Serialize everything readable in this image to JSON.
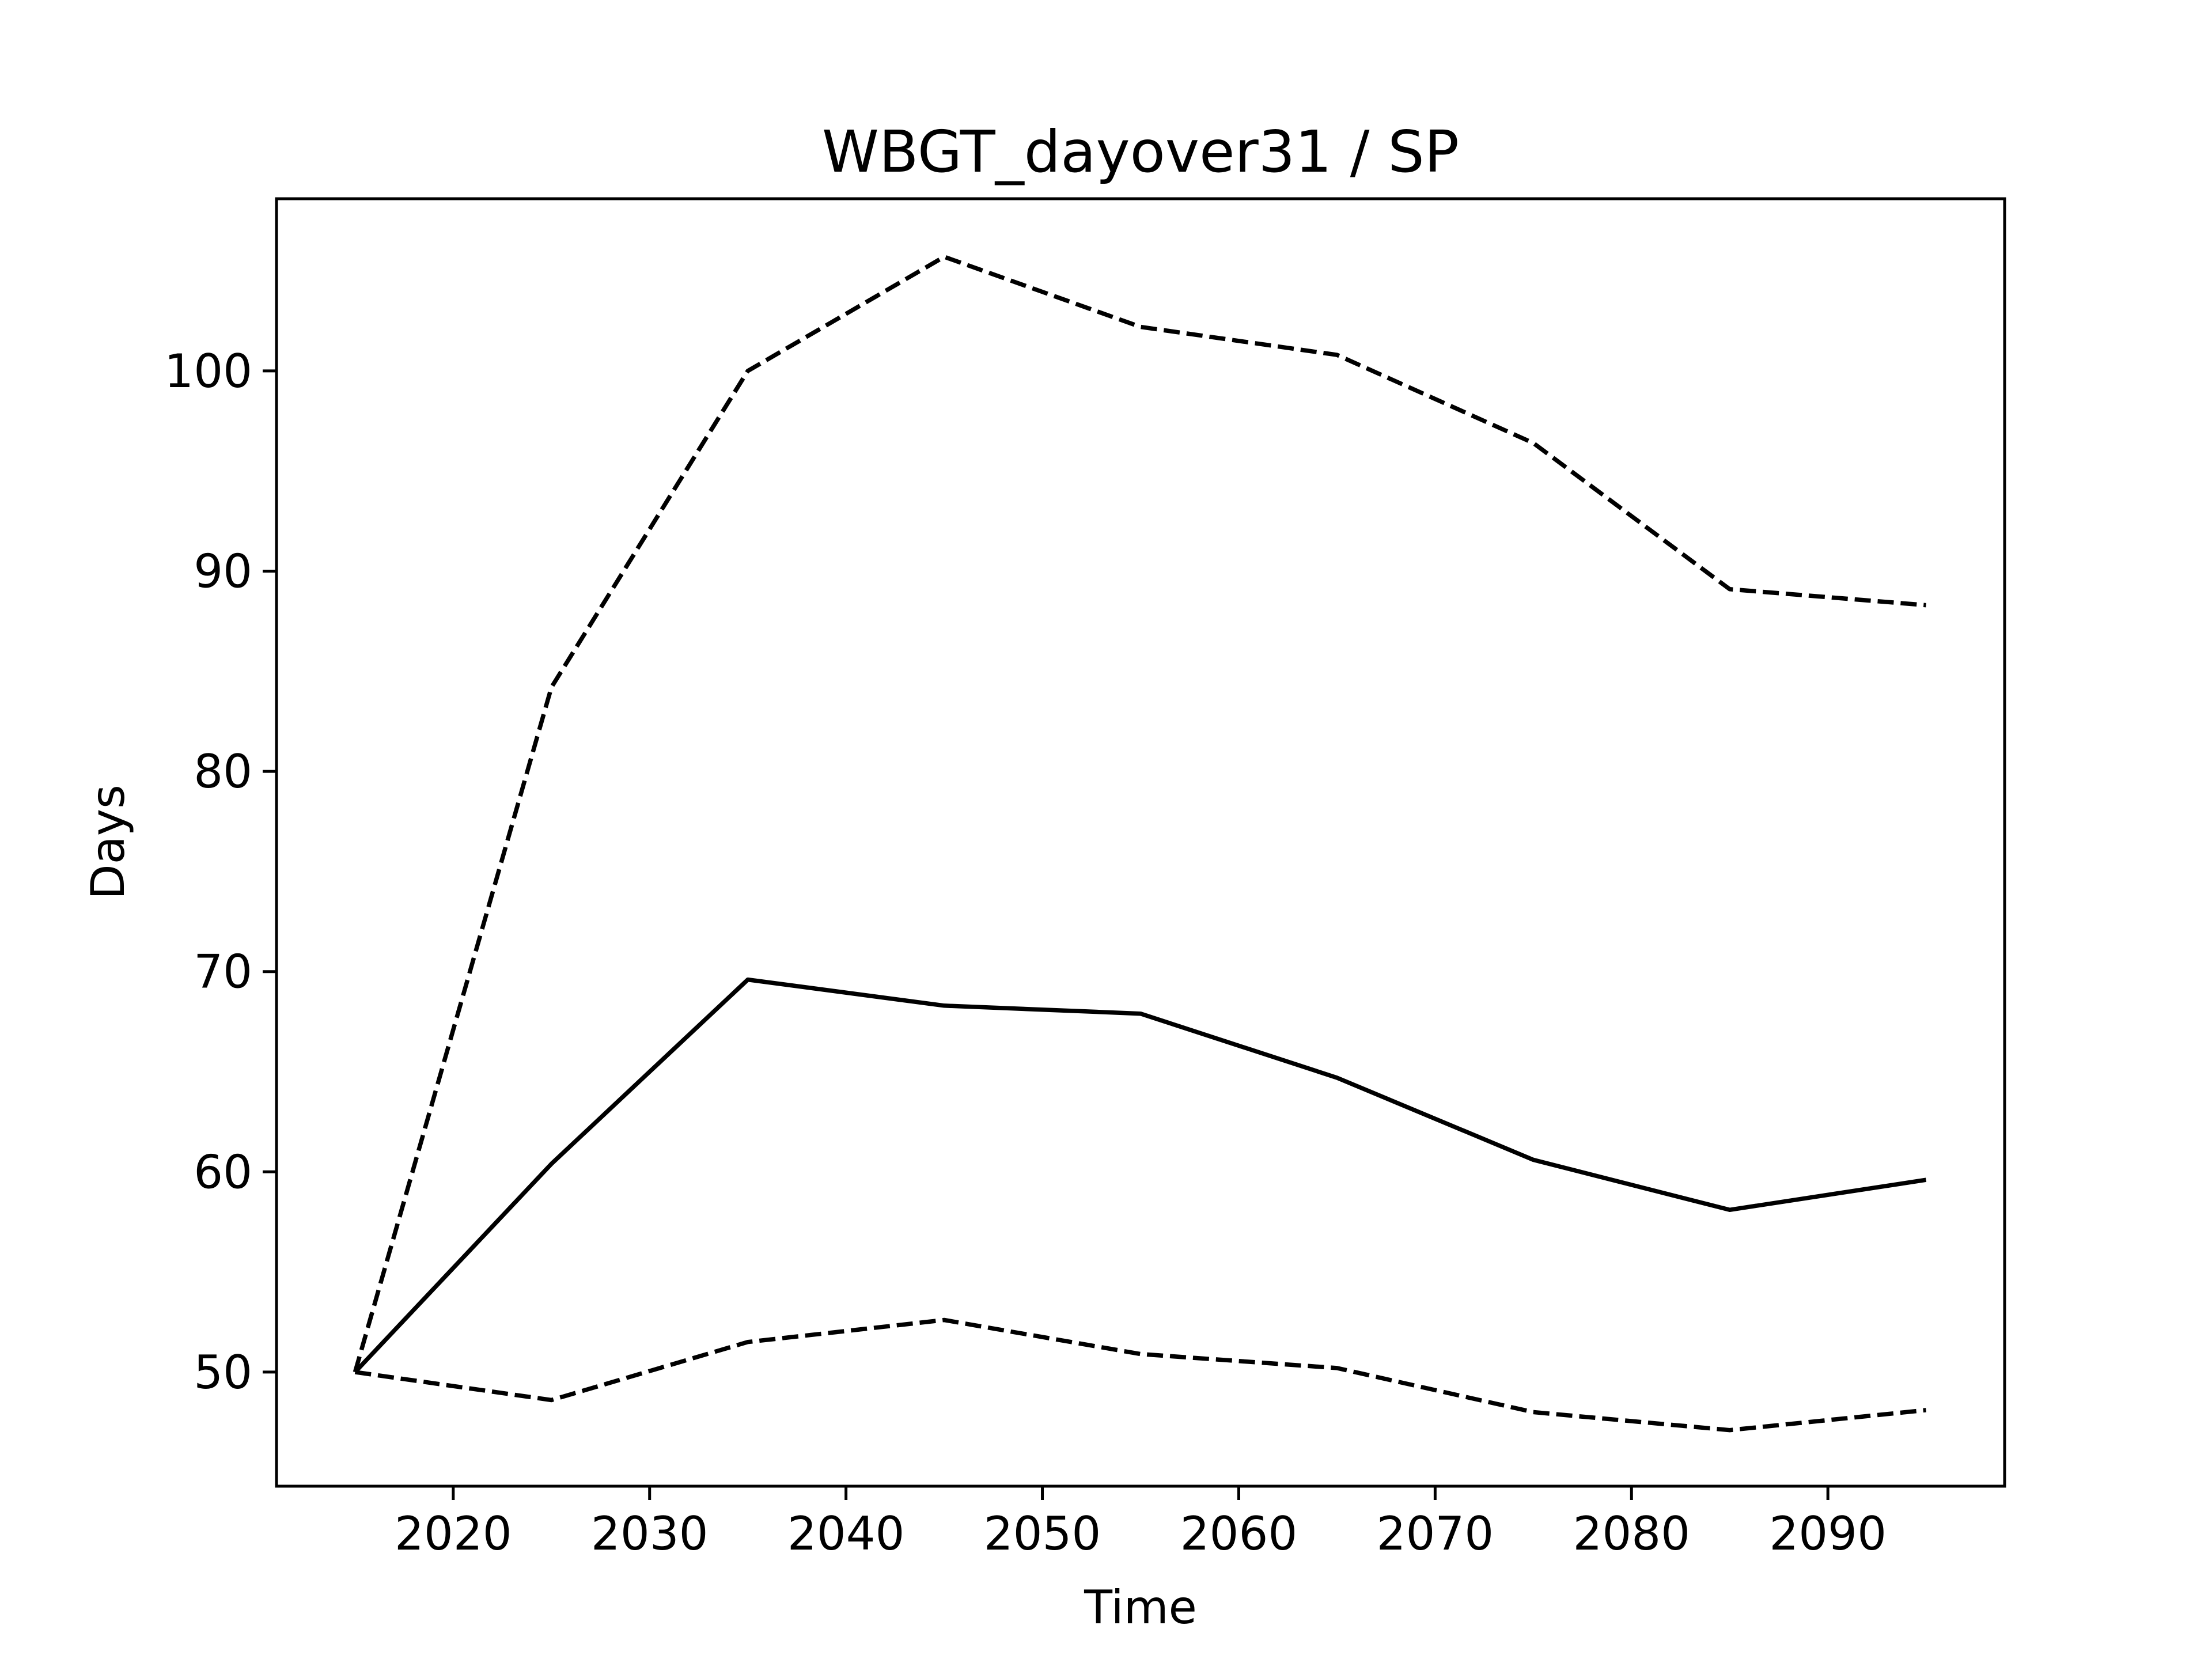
{
  "chart_data": {
    "type": "line",
    "title": "WBGT_dayover31 / SP",
    "xlabel": "Time",
    "ylabel": "Days",
    "xlim": [
      2011,
      2099
    ],
    "ylim": [
      44.3,
      108.6
    ],
    "xticks": [
      2020,
      2030,
      2040,
      2050,
      2060,
      2070,
      2080,
      2090
    ],
    "yticks": [
      50,
      60,
      70,
      80,
      90,
      100
    ],
    "grid": false,
    "legend": null,
    "x": [
      2015,
      2025,
      2035,
      2045,
      2055,
      2065,
      2075,
      2085,
      2095
    ],
    "series": [
      {
        "style": "solid",
        "color": "#000000",
        "values": [
          50.0,
          60.4,
          69.6,
          68.3,
          67.9,
          64.7,
          60.6,
          58.1,
          59.6
        ]
      },
      {
        "style": "dashed",
        "color": "#000000",
        "values": [
          50.0,
          84.2,
          100.0,
          105.7,
          102.2,
          100.8,
          96.4,
          89.1,
          88.3
        ]
      },
      {
        "style": "dashed",
        "color": "#000000",
        "values": [
          50.0,
          48.6,
          51.5,
          52.6,
          50.9,
          50.2,
          48.0,
          47.1,
          48.1
        ]
      }
    ]
  }
}
